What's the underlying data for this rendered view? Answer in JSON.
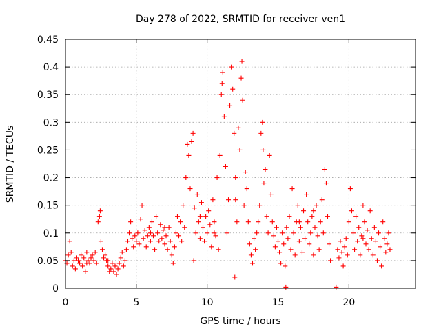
{
  "chart_data": {
    "type": "scatter",
    "title": "Day 278 of 2022, SRMTID for receiver ven1",
    "xlabel": "GPS time / hours",
    "ylabel": "SRMTID / TECUs",
    "xlim": [
      0,
      24.7
    ],
    "ylim": [
      0,
      0.45
    ],
    "grid": true,
    "legend": "none",
    "marker": "plus",
    "color": "#ff0000",
    "x_ticks": [
      0,
      5,
      10,
      15,
      20
    ],
    "x_tick_labels": [
      "0",
      "5",
      "10",
      "15",
      "20"
    ],
    "y_ticks": [
      0,
      0.05,
      0.1,
      0.15,
      0.2,
      0.25,
      0.3,
      0.35,
      0.4,
      0.45
    ],
    "y_tick_labels": [
      "0",
      "0.05",
      "0.1",
      "0.15",
      "0.2",
      "0.25",
      "0.3",
      "0.35",
      "0.4",
      "0.45"
    ],
    "series": [
      {
        "name": "SRMTID",
        "points": [
          [
            0.0,
            0.05
          ],
          [
            0.1,
            0.045
          ],
          [
            0.2,
            0.06
          ],
          [
            0.3,
            0.085
          ],
          [
            0.4,
            0.065
          ],
          [
            0.5,
            0.04
          ],
          [
            0.6,
            0.05
          ],
          [
            0.7,
            0.035
          ],
          [
            0.8,
            0.055
          ],
          [
            0.9,
            0.05
          ],
          [
            1.0,
            0.045
          ],
          [
            1.1,
            0.06
          ],
          [
            1.2,
            0.04
          ],
          [
            1.3,
            0.055
          ],
          [
            1.4,
            0.03
          ],
          [
            1.5,
            0.065
          ],
          [
            1.6,
            0.05
          ],
          [
            1.7,
            0.045
          ],
          [
            1.8,
            0.055
          ],
          [
            1.9,
            0.06
          ],
          [
            2.0,
            0.05
          ],
          [
            2.1,
            0.065
          ],
          [
            2.2,
            0.045
          ],
          [
            2.3,
            0.12
          ],
          [
            2.4,
            0.13
          ],
          [
            2.45,
            0.14
          ],
          [
            2.5,
            0.085
          ],
          [
            2.6,
            0.07
          ],
          [
            2.7,
            0.055
          ],
          [
            2.8,
            0.06
          ],
          [
            2.9,
            0.05
          ],
          [
            3.0,
            0.04
          ],
          [
            3.1,
            0.03
          ],
          [
            3.2,
            0.035
          ],
          [
            3.3,
            0.045
          ],
          [
            3.4,
            0.03
          ],
          [
            3.5,
            0.04
          ],
          [
            3.6,
            0.025
          ],
          [
            3.7,
            0.035
          ],
          [
            3.8,
            0.045
          ],
          [
            3.9,
            0.055
          ],
          [
            4.0,
            0.065
          ],
          [
            4.1,
            0.04
          ],
          [
            4.2,
            0.05
          ],
          [
            4.3,
            0.07
          ],
          [
            4.4,
            0.085
          ],
          [
            4.5,
            0.1
          ],
          [
            4.6,
            0.12
          ],
          [
            4.7,
            0.09
          ],
          [
            4.8,
            0.075
          ],
          [
            4.9,
            0.095
          ],
          [
            5.0,
            0.085
          ],
          [
            5.1,
            0.1
          ],
          [
            5.2,
            0.08
          ],
          [
            5.3,
            0.125
          ],
          [
            5.4,
            0.15
          ],
          [
            5.5,
            0.09
          ],
          [
            5.6,
            0.105
          ],
          [
            5.7,
            0.075
          ],
          [
            5.8,
            0.095
          ],
          [
            5.9,
            0.11
          ],
          [
            6.0,
            0.085
          ],
          [
            6.1,
            0.12
          ],
          [
            6.2,
            0.095
          ],
          [
            6.3,
            0.07
          ],
          [
            6.4,
            0.13
          ],
          [
            6.5,
            0.1
          ],
          [
            6.6,
            0.085
          ],
          [
            6.7,
            0.115
          ],
          [
            6.8,
            0.09
          ],
          [
            6.9,
            0.105
          ],
          [
            7.0,
            0.08
          ],
          [
            7.1,
            0.095
          ],
          [
            7.2,
            0.07
          ],
          [
            7.3,
            0.11
          ],
          [
            7.4,
            0.085
          ],
          [
            7.5,
            0.06
          ],
          [
            7.6,
            0.045
          ],
          [
            7.7,
            0.075
          ],
          [
            7.8,
            0.1
          ],
          [
            7.9,
            0.13
          ],
          [
            8.0,
            0.095
          ],
          [
            8.1,
            0.12
          ],
          [
            8.2,
            0.085
          ],
          [
            8.3,
            0.15
          ],
          [
            8.4,
            0.11
          ],
          [
            8.5,
            0.2
          ],
          [
            8.6,
            0.26
          ],
          [
            8.7,
            0.24
          ],
          [
            8.8,
            0.18
          ],
          [
            8.9,
            0.265
          ],
          [
            9.0,
            0.28
          ],
          [
            9.05,
            0.05
          ],
          [
            9.1,
            0.145
          ],
          [
            9.2,
            0.1
          ],
          [
            9.3,
            0.17
          ],
          [
            9.4,
            0.12
          ],
          [
            9.5,
            0.09
          ],
          [
            9.6,
            0.155
          ],
          [
            9.7,
            0.11
          ],
          [
            9.8,
            0.085
          ],
          [
            9.9,
            0.13
          ],
          [
            10.0,
            0.1
          ],
          [
            10.1,
            0.14
          ],
          [
            10.2,
            0.115
          ],
          [
            10.3,
            0.075
          ],
          [
            10.4,
            0.16
          ],
          [
            10.5,
            0.12
          ],
          [
            10.6,
            0.095
          ],
          [
            10.7,
            0.2
          ],
          [
            10.8,
            0.07
          ],
          [
            10.9,
            0.24
          ],
          [
            11.0,
            0.35
          ],
          [
            11.05,
            0.37
          ],
          [
            11.1,
            0.39
          ],
          [
            11.2,
            0.31
          ],
          [
            11.3,
            0.22
          ],
          [
            11.4,
            0.1
          ],
          [
            11.5,
            0.16
          ],
          [
            11.6,
            0.33
          ],
          [
            11.7,
            0.4
          ],
          [
            11.8,
            0.36
          ],
          [
            11.9,
            0.28
          ],
          [
            11.95,
            0.02
          ],
          [
            12.0,
            0.2
          ],
          [
            12.1,
            0.12
          ],
          [
            12.2,
            0.29
          ],
          [
            12.3,
            0.25
          ],
          [
            12.4,
            0.38
          ],
          [
            12.45,
            0.41
          ],
          [
            12.5,
            0.34
          ],
          [
            12.6,
            0.15
          ],
          [
            12.7,
            0.21
          ],
          [
            12.8,
            0.18
          ],
          [
            12.9,
            0.12
          ],
          [
            13.0,
            0.08
          ],
          [
            13.1,
            0.06
          ],
          [
            13.2,
            0.045
          ],
          [
            13.3,
            0.09
          ],
          [
            13.4,
            0.07
          ],
          [
            13.5,
            0.1
          ],
          [
            13.6,
            0.12
          ],
          [
            13.7,
            0.15
          ],
          [
            13.8,
            0.28
          ],
          [
            13.9,
            0.3
          ],
          [
            13.95,
            0.25
          ],
          [
            14.0,
            0.19
          ],
          [
            14.1,
            0.215
          ],
          [
            14.2,
            0.13
          ],
          [
            14.3,
            0.1
          ],
          [
            14.4,
            0.24
          ],
          [
            14.5,
            0.17
          ],
          [
            14.6,
            0.12
          ],
          [
            14.7,
            0.095
          ],
          [
            14.8,
            0.075
          ],
          [
            14.9,
            0.11
          ],
          [
            15.0,
            0.085
          ],
          [
            15.1,
            0.065
          ],
          [
            15.2,
            0.045
          ],
          [
            15.3,
            0.1
          ],
          [
            15.4,
            0.08
          ],
          [
            15.5,
            0.04
          ],
          [
            15.6,
            0.11
          ],
          [
            15.7,
            0.09
          ],
          [
            15.8,
            0.13
          ],
          [
            15.9,
            0.07
          ],
          [
            16.0,
            0.18
          ],
          [
            16.1,
            0.1
          ],
          [
            16.2,
            0.06
          ],
          [
            16.3,
            0.12
          ],
          [
            16.4,
            0.15
          ],
          [
            16.5,
            0.085
          ],
          [
            16.6,
            0.11
          ],
          [
            16.7,
            0.065
          ],
          [
            16.8,
            0.14
          ],
          [
            16.9,
            0.09
          ],
          [
            17.0,
            0.17
          ],
          [
            17.1,
            0.12
          ],
          [
            17.2,
            0.08
          ],
          [
            17.3,
            0.1
          ],
          [
            17.4,
            0.13
          ],
          [
            17.5,
            0.06
          ],
          [
            17.6,
            0.11
          ],
          [
            17.7,
            0.15
          ],
          [
            17.8,
            0.095
          ],
          [
            17.9,
            0.07
          ],
          [
            18.0,
            0.12
          ],
          [
            18.1,
            0.16
          ],
          [
            18.2,
            0.1
          ],
          [
            18.3,
            0.215
          ],
          [
            18.4,
            0.19
          ],
          [
            18.5,
            0.13
          ],
          [
            18.6,
            0.08
          ],
          [
            18.7,
            0.05
          ],
          [
            19.2,
            0.07
          ],
          [
            19.3,
            0.055
          ],
          [
            19.4,
            0.085
          ],
          [
            19.5,
            0.065
          ],
          [
            19.6,
            0.04
          ],
          [
            19.7,
            0.075
          ],
          [
            19.8,
            0.09
          ],
          [
            19.9,
            0.06
          ],
          [
            20.0,
            0.12
          ],
          [
            20.1,
            0.18
          ],
          [
            20.2,
            0.14
          ],
          [
            20.3,
            0.1
          ],
          [
            20.4,
            0.07
          ],
          [
            20.5,
            0.13
          ],
          [
            20.6,
            0.085
          ],
          [
            20.7,
            0.11
          ],
          [
            20.8,
            0.06
          ],
          [
            20.9,
            0.095
          ],
          [
            21.0,
            0.15
          ],
          [
            21.1,
            0.12
          ],
          [
            21.2,
            0.08
          ],
          [
            21.3,
            0.105
          ],
          [
            21.4,
            0.07
          ],
          [
            21.5,
            0.14
          ],
          [
            21.6,
            0.09
          ],
          [
            21.7,
            0.06
          ],
          [
            21.8,
            0.11
          ],
          [
            21.9,
            0.085
          ],
          [
            22.0,
            0.05
          ],
          [
            22.1,
            0.1
          ],
          [
            22.2,
            0.075
          ],
          [
            22.3,
            0.04
          ],
          [
            22.4,
            0.12
          ],
          [
            22.5,
            0.09
          ],
          [
            22.6,
            0.065
          ],
          [
            22.7,
            0.08
          ],
          [
            22.8,
            0.1
          ],
          [
            22.9,
            0.07
          ],
          [
            15.55,
            0.002
          ],
          [
            19.1,
            0.002
          ],
          [
            7.0,
            0.11
          ],
          [
            6.0,
            0.1
          ],
          [
            9.5,
            0.13
          ],
          [
            10.5,
            0.1
          ],
          [
            12.0,
            0.16
          ],
          [
            16.5,
            0.12
          ],
          [
            17.5,
            0.14
          ],
          [
            21.0,
            0.09
          ],
          [
            3.0,
            0.05
          ],
          [
            1.5,
            0.045
          ]
        ]
      }
    ]
  }
}
